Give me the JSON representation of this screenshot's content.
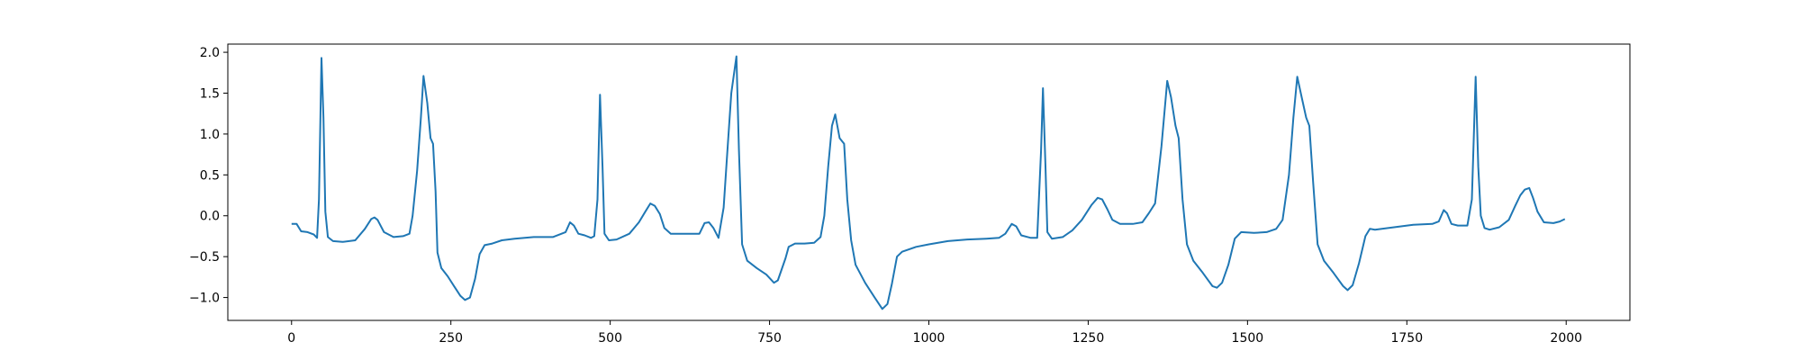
{
  "chart_data": {
    "type": "line",
    "title": "",
    "xlabel": "",
    "ylabel": "",
    "xlim": [
      -100,
      2100
    ],
    "ylim": [
      -1.28,
      2.1
    ],
    "grid": false,
    "xticks": [
      0,
      250,
      500,
      750,
      1000,
      1250,
      1500,
      1750,
      2000
    ],
    "xtick_labels": [
      "0",
      "250",
      "500",
      "750",
      "1000",
      "1250",
      "1500",
      "1750",
      "2000"
    ],
    "yticks": [
      -1.0,
      -0.5,
      0.0,
      0.5,
      1.0,
      1.5,
      2.0
    ],
    "ytick_labels": [
      "−1.0",
      "−0.5",
      "0.0",
      "0.5",
      "1.0",
      "1.5",
      "2.0"
    ],
    "series": [
      {
        "color": "#1f77b4",
        "points": [
          [
            0,
            -0.1
          ],
          [
            8,
            -0.1
          ],
          [
            15,
            -0.19
          ],
          [
            25,
            -0.2
          ],
          [
            35,
            -0.23
          ],
          [
            40,
            -0.27
          ],
          [
            43,
            0.2
          ],
          [
            47,
            1.93
          ],
          [
            50,
            1.2
          ],
          [
            53,
            0.05
          ],
          [
            57,
            -0.26
          ],
          [
            65,
            -0.31
          ],
          [
            80,
            -0.32
          ],
          [
            100,
            -0.3
          ],
          [
            115,
            -0.16
          ],
          [
            125,
            -0.04
          ],
          [
            130,
            -0.02
          ],
          [
            135,
            -0.05
          ],
          [
            145,
            -0.2
          ],
          [
            160,
            -0.26
          ],
          [
            175,
            -0.25
          ],
          [
            185,
            -0.22
          ],
          [
            190,
            0.0
          ],
          [
            197,
            0.55
          ],
          [
            203,
            1.2
          ],
          [
            207,
            1.71
          ],
          [
            213,
            1.38
          ],
          [
            218,
            0.95
          ],
          [
            222,
            0.88
          ],
          [
            226,
            0.3
          ],
          [
            229,
            -0.45
          ],
          [
            235,
            -0.64
          ],
          [
            245,
            -0.74
          ],
          [
            255,
            -0.86
          ],
          [
            265,
            -0.98
          ],
          [
            272,
            -1.03
          ],
          [
            280,
            -1.0
          ],
          [
            288,
            -0.77
          ],
          [
            295,
            -0.47
          ],
          [
            303,
            -0.36
          ],
          [
            315,
            -0.34
          ],
          [
            330,
            -0.3
          ],
          [
            350,
            -0.28
          ],
          [
            380,
            -0.26
          ],
          [
            410,
            -0.26
          ],
          [
            430,
            -0.2
          ],
          [
            437,
            -0.08
          ],
          [
            443,
            -0.12
          ],
          [
            450,
            -0.22
          ],
          [
            460,
            -0.24
          ],
          [
            470,
            -0.27
          ],
          [
            475,
            -0.25
          ],
          [
            480,
            0.2
          ],
          [
            484,
            1.48
          ],
          [
            488,
            0.6
          ],
          [
            491,
            -0.22
          ],
          [
            498,
            -0.3
          ],
          [
            510,
            -0.29
          ],
          [
            530,
            -0.22
          ],
          [
            545,
            -0.08
          ],
          [
            555,
            0.05
          ],
          [
            563,
            0.15
          ],
          [
            570,
            0.12
          ],
          [
            578,
            0.02
          ],
          [
            585,
            -0.15
          ],
          [
            595,
            -0.22
          ],
          [
            620,
            -0.22
          ],
          [
            640,
            -0.22
          ],
          [
            648,
            -0.09
          ],
          [
            655,
            -0.08
          ],
          [
            662,
            -0.15
          ],
          [
            670,
            -0.27
          ],
          [
            678,
            0.1
          ],
          [
            683,
            0.7
          ],
          [
            690,
            1.5
          ],
          [
            698,
            1.95
          ],
          [
            702,
            0.8
          ],
          [
            707,
            -0.35
          ],
          [
            715,
            -0.55
          ],
          [
            730,
            -0.64
          ],
          [
            745,
            -0.72
          ],
          [
            757,
            -0.82
          ],
          [
            763,
            -0.79
          ],
          [
            775,
            -0.52
          ],
          [
            780,
            -0.38
          ],
          [
            790,
            -0.34
          ],
          [
            805,
            -0.34
          ],
          [
            820,
            -0.33
          ],
          [
            830,
            -0.26
          ],
          [
            836,
            0.0
          ],
          [
            842,
            0.6
          ],
          [
            848,
            1.1
          ],
          [
            853,
            1.24
          ],
          [
            860,
            0.95
          ],
          [
            867,
            0.88
          ],
          [
            872,
            0.2
          ],
          [
            878,
            -0.3
          ],
          [
            885,
            -0.6
          ],
          [
            900,
            -0.82
          ],
          [
            915,
            -1.0
          ],
          [
            927,
            -1.14
          ],
          [
            935,
            -1.08
          ],
          [
            942,
            -0.83
          ],
          [
            950,
            -0.5
          ],
          [
            958,
            -0.44
          ],
          [
            980,
            -0.38
          ],
          [
            1000,
            -0.35
          ],
          [
            1030,
            -0.31
          ],
          [
            1060,
            -0.29
          ],
          [
            1090,
            -0.28
          ],
          [
            1110,
            -0.27
          ],
          [
            1120,
            -0.22
          ],
          [
            1130,
            -0.1
          ],
          [
            1137,
            -0.13
          ],
          [
            1145,
            -0.24
          ],
          [
            1160,
            -0.27
          ],
          [
            1170,
            -0.27
          ],
          [
            1176,
            0.8
          ],
          [
            1179,
            1.56
          ],
          [
            1183,
            0.6
          ],
          [
            1186,
            -0.2
          ],
          [
            1193,
            -0.28
          ],
          [
            1210,
            -0.26
          ],
          [
            1225,
            -0.18
          ],
          [
            1240,
            -0.05
          ],
          [
            1255,
            0.13
          ],
          [
            1265,
            0.22
          ],
          [
            1272,
            0.2
          ],
          [
            1280,
            0.08
          ],
          [
            1288,
            -0.05
          ],
          [
            1300,
            -0.1
          ],
          [
            1320,
            -0.1
          ],
          [
            1335,
            -0.08
          ],
          [
            1345,
            0.03
          ],
          [
            1355,
            0.15
          ],
          [
            1365,
            0.85
          ],
          [
            1374,
            1.65
          ],
          [
            1380,
            1.45
          ],
          [
            1387,
            1.1
          ],
          [
            1392,
            0.95
          ],
          [
            1398,
            0.2
          ],
          [
            1405,
            -0.35
          ],
          [
            1415,
            -0.55
          ],
          [
            1430,
            -0.7
          ],
          [
            1445,
            -0.86
          ],
          [
            1452,
            -0.88
          ],
          [
            1460,
            -0.82
          ],
          [
            1470,
            -0.6
          ],
          [
            1480,
            -0.28
          ],
          [
            1490,
            -0.2
          ],
          [
            1510,
            -0.21
          ],
          [
            1530,
            -0.2
          ],
          [
            1545,
            -0.16
          ],
          [
            1555,
            -0.05
          ],
          [
            1565,
            0.5
          ],
          [
            1572,
            1.2
          ],
          [
            1578,
            1.7
          ],
          [
            1585,
            1.45
          ],
          [
            1592,
            1.2
          ],
          [
            1597,
            1.1
          ],
          [
            1603,
            0.4
          ],
          [
            1610,
            -0.35
          ],
          [
            1620,
            -0.55
          ],
          [
            1635,
            -0.7
          ],
          [
            1650,
            -0.86
          ],
          [
            1657,
            -0.91
          ],
          [
            1665,
            -0.85
          ],
          [
            1675,
            -0.58
          ],
          [
            1685,
            -0.25
          ],
          [
            1692,
            -0.16
          ],
          [
            1700,
            -0.17
          ],
          [
            1730,
            -0.14
          ],
          [
            1760,
            -0.11
          ],
          [
            1790,
            -0.1
          ],
          [
            1800,
            -0.07
          ],
          [
            1808,
            0.07
          ],
          [
            1813,
            0.03
          ],
          [
            1820,
            -0.1
          ],
          [
            1830,
            -0.12
          ],
          [
            1845,
            -0.12
          ],
          [
            1852,
            0.2
          ],
          [
            1858,
            1.7
          ],
          [
            1862,
            0.6
          ],
          [
            1866,
            0.0
          ],
          [
            1872,
            -0.15
          ],
          [
            1880,
            -0.17
          ],
          [
            1895,
            -0.14
          ],
          [
            1910,
            -0.05
          ],
          [
            1920,
            0.12
          ],
          [
            1928,
            0.25
          ],
          [
            1935,
            0.32
          ],
          [
            1942,
            0.34
          ],
          [
            1948,
            0.22
          ],
          [
            1955,
            0.05
          ],
          [
            1965,
            -0.08
          ],
          [
            1980,
            -0.09
          ],
          [
            1990,
            -0.07
          ],
          [
            1998,
            -0.04
          ]
        ]
      }
    ]
  }
}
